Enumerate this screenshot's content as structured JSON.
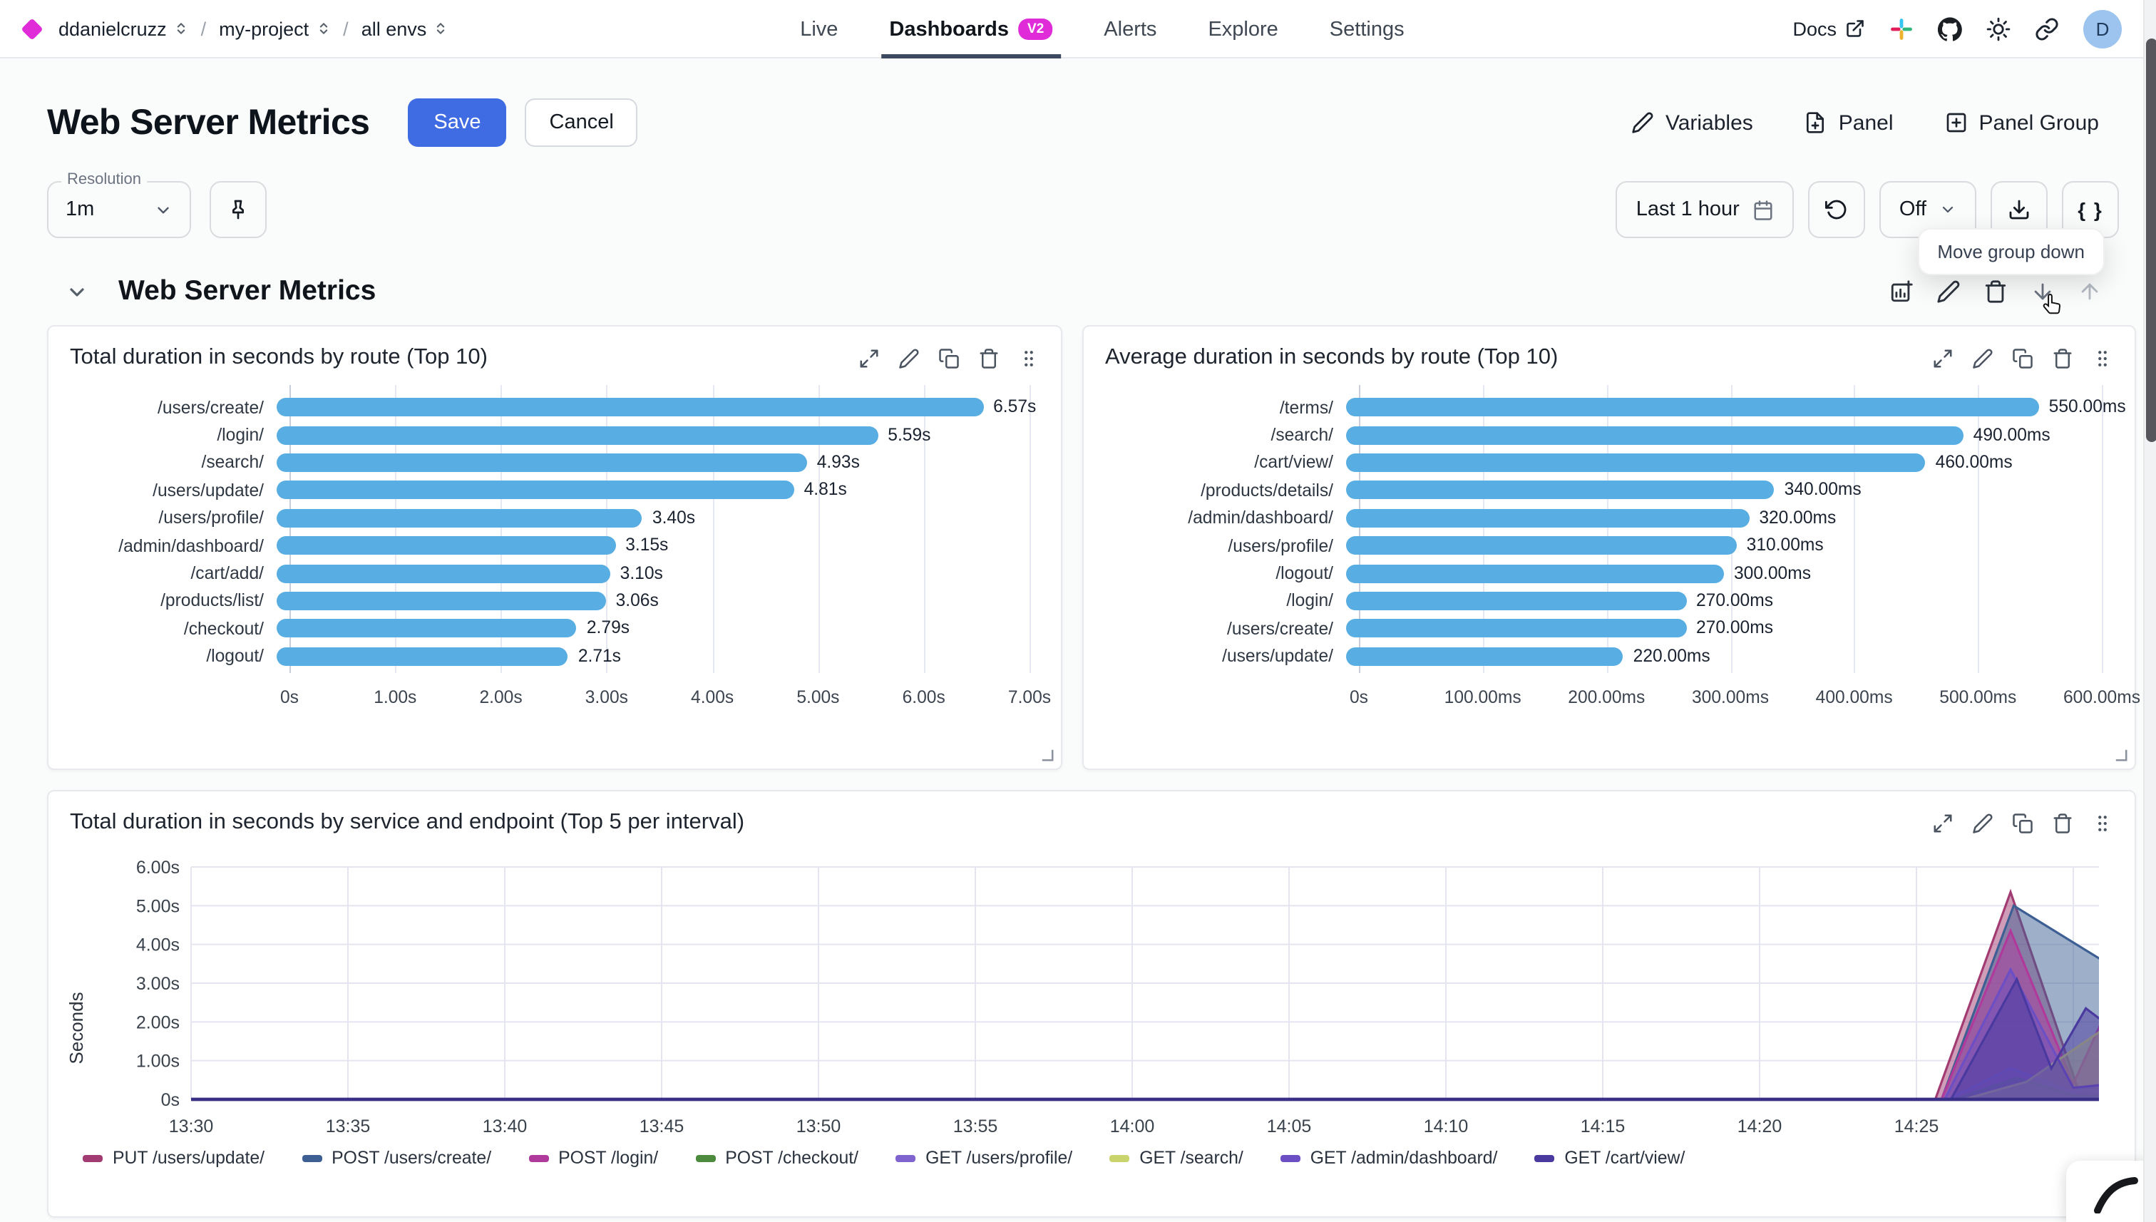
{
  "topbar": {
    "breadcrumb": {
      "org": "ddanielcruzz",
      "sep": "/",
      "project": "my-project",
      "env": "all envs"
    },
    "tabs": [
      {
        "label": "Live"
      },
      {
        "label": "Dashboards",
        "badge": "V2"
      },
      {
        "label": "Alerts"
      },
      {
        "label": "Explore"
      },
      {
        "label": "Settings"
      }
    ],
    "docs_label": "Docs",
    "avatar_initial": "D"
  },
  "header": {
    "title": "Web Server Metrics",
    "save_label": "Save",
    "cancel_label": "Cancel",
    "variables_label": "Variables",
    "panel_label": "Panel",
    "panel_group_label": "Panel Group"
  },
  "toolbar": {
    "resolution_label": "Resolution",
    "resolution_value": "1m",
    "time_range_label": "Last 1 hour",
    "refresh_state": "Off",
    "braces_label": "{ }",
    "tooltip": "Move group down"
  },
  "section": {
    "title": "Web Server Metrics"
  },
  "colors": {
    "accent_blue": "#3f6be3",
    "brand_magenta": "#df2bd8",
    "bar_blue": "#58ade2",
    "baseline_indigo": "#3a2f86"
  },
  "chart_data": [
    {
      "type": "bar",
      "orientation": "horizontal",
      "title": "Total duration in seconds by route (Top 10)",
      "categories": [
        "/users/create/",
        "/login/",
        "/search/",
        "/users/update/",
        "/users/profile/",
        "/admin/dashboard/",
        "/cart/add/",
        "/products/list/",
        "/checkout/",
        "/logout/"
      ],
      "values": [
        6.57,
        5.59,
        4.93,
        4.81,
        3.4,
        3.15,
        3.1,
        3.06,
        2.79,
        2.71
      ],
      "value_labels": [
        "6.57s",
        "5.59s",
        "4.93s",
        "4.81s",
        "3.40s",
        "3.15s",
        "3.10s",
        "3.06s",
        "2.79s",
        "2.71s"
      ],
      "xticks": [
        "0s",
        "1.00s",
        "2.00s",
        "3.00s",
        "4.00s",
        "5.00s",
        "6.00s",
        "7.00s"
      ],
      "xlim": [
        0,
        7
      ],
      "unit": "s",
      "bar_color": "#58ade2",
      "grid": true
    },
    {
      "type": "bar",
      "orientation": "horizontal",
      "title": "Average duration in seconds by route (Top 10)",
      "categories": [
        "/terms/",
        "/search/",
        "/cart/view/",
        "/products/details/",
        "/admin/dashboard/",
        "/users/profile/",
        "/logout/",
        "/login/",
        "/users/create/",
        "/users/update/"
      ],
      "values": [
        550,
        490,
        460,
        340,
        320,
        310,
        300,
        270,
        270,
        220
      ],
      "value_labels": [
        "550.00ms",
        "490.00ms",
        "460.00ms",
        "340.00ms",
        "320.00ms",
        "310.00ms",
        "300.00ms",
        "270.00ms",
        "270.00ms",
        "220.00ms"
      ],
      "xticks": [
        "0s",
        "100.00ms",
        "200.00ms",
        "300.00ms",
        "400.00ms",
        "500.00ms",
        "600.00ms"
      ],
      "xlim": [
        0,
        600
      ],
      "unit": "ms",
      "bar_color": "#58ade2",
      "grid": true
    },
    {
      "type": "area",
      "title": "Total duration in seconds by service and endpoint (Top 5 per interval)",
      "ylabel": "Seconds",
      "yticks": [
        "0s",
        "1.00s",
        "2.00s",
        "3.00s",
        "4.00s",
        "5.00s",
        "6.00s"
      ],
      "ylim": [
        0,
        6
      ],
      "xticks": [
        "13:30",
        "13:35",
        "13:40",
        "13:45",
        "13:50",
        "13:55",
        "14:00",
        "14:05",
        "14:10",
        "14:15",
        "14:20",
        "14:25"
      ],
      "grid": true,
      "legend_position": "bottom",
      "series": [
        {
          "name": "PUT /users/update/",
          "color": "#a23b72",
          "points": [
            [
              0,
              0
            ],
            [
              55.6,
              0
            ],
            [
              58,
              5.35
            ],
            [
              60.2,
              0.15
            ],
            [
              61.3,
              0.1
            ]
          ]
        },
        {
          "name": "POST /users/create/",
          "color": "#3e5f93",
          "points": [
            [
              0,
              0
            ],
            [
              55.8,
              0
            ],
            [
              58.1,
              5.0
            ],
            [
              61.3,
              3.4
            ]
          ]
        },
        {
          "name": "POST /login/",
          "color": "#b03a9c",
          "points": [
            [
              0,
              0
            ],
            [
              55.8,
              0
            ],
            [
              58,
              4.35
            ],
            [
              60,
              0.4
            ],
            [
              61.3,
              2.7
            ]
          ]
        },
        {
          "name": "POST /checkout/",
          "color": "#4c8a3e",
          "points": [
            [
              0,
              0
            ],
            [
              56.2,
              0
            ],
            [
              58.2,
              0.55
            ],
            [
              60,
              0.1
            ],
            [
              61.3,
              0.1
            ]
          ]
        },
        {
          "name": "GET /users/profile/",
          "color": "#7f63ce",
          "points": [
            [
              0,
              0
            ],
            [
              56,
              0
            ],
            [
              58,
              0.8
            ],
            [
              60,
              0.2
            ],
            [
              61.3,
              0.5
            ]
          ]
        },
        {
          "name": "GET /search/",
          "color": "#c9d56c",
          "points": [
            [
              0,
              0
            ],
            [
              56.5,
              0
            ],
            [
              58.5,
              0.45
            ],
            [
              61.3,
              2.0
            ]
          ]
        },
        {
          "name": "GET /admin/dashboard/",
          "color": "#6c4fc4",
          "points": [
            [
              0,
              0
            ],
            [
              55.9,
              0
            ],
            [
              58,
              3.35
            ],
            [
              60,
              0.3
            ],
            [
              61.3,
              0.4
            ]
          ]
        },
        {
          "name": "GET /cart/view/",
          "color": "#4a3aa0",
          "points": [
            [
              0,
              0
            ],
            [
              56.1,
              0
            ],
            [
              58.2,
              3.1
            ],
            [
              59.3,
              0.8
            ],
            [
              60.4,
              2.35
            ],
            [
              61.3,
              1.8
            ]
          ]
        }
      ]
    }
  ]
}
